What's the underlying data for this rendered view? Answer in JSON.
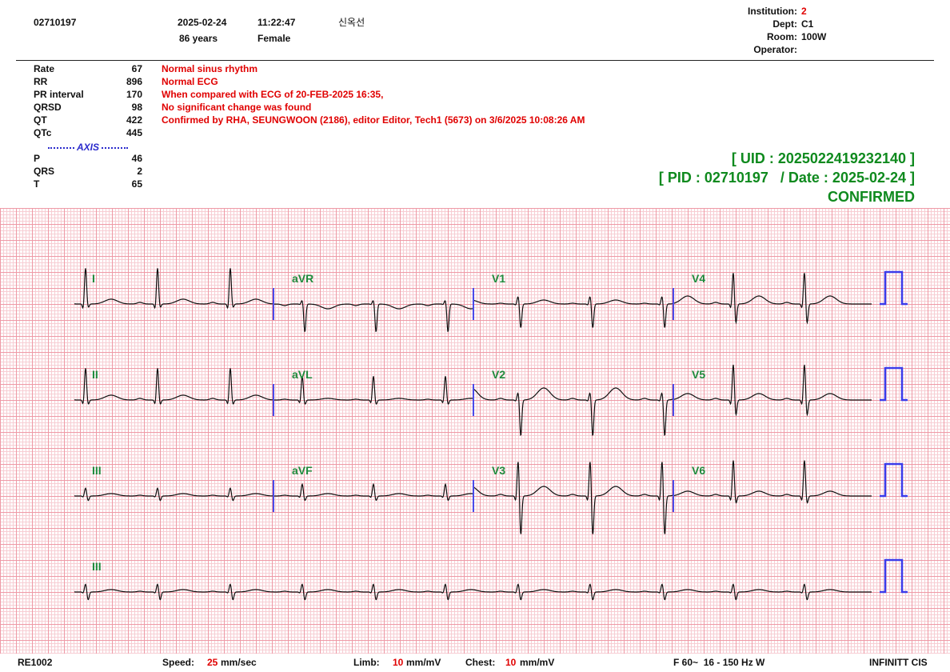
{
  "header": {
    "patient_id": "02710197",
    "date": "2025-02-24",
    "time": "11:22:47",
    "name": "신옥선",
    "age": "86 years",
    "sex": "Female",
    "institution": {
      "label": "Institution:",
      "value": "2"
    },
    "dept": {
      "label": "Dept:",
      "value": "C1"
    },
    "room": {
      "label": "Room:",
      "value": "100W"
    },
    "operator": {
      "label": "Operator:"
    }
  },
  "measurements": [
    {
      "label": "Rate",
      "value": 67
    },
    {
      "label": "RR",
      "value": 896
    },
    {
      "label": "PR interval",
      "value": 170
    },
    {
      "label": "QRSD",
      "value": 98
    },
    {
      "label": "QT",
      "value": 422
    },
    {
      "label": "QTc",
      "value": 445
    }
  ],
  "axis_title": "AXIS",
  "axis": [
    {
      "label": "P",
      "value": 46
    },
    {
      "label": "QRS",
      "value": 2
    },
    {
      "label": "T",
      "value": 65
    }
  ],
  "interpretation": [
    "Normal sinus rhythm",
    "Normal ECG",
    "When compared with ECG of 20-FEB-2025 16:35,",
    "No significant change was found",
    "Confirmed by RHA, SEUNGWOON (2186), editor Editor, Tech1 (5673) on 3/6/2025 10:08:26 AM"
  ],
  "status": {
    "uid": "[ UID : 2025022419232140 ]",
    "pid": "[ PID : 02710197   / Date : 2025-02-24 ]",
    "state": "CONFIRMED"
  },
  "leads": [
    "I",
    "aVR",
    "V1",
    "V4",
    "II",
    "aVL",
    "V2",
    "V5",
    "III",
    "aVF",
    "V3",
    "V6",
    "III"
  ],
  "footer": {
    "device": "RE1002",
    "speed_label": "Speed:",
    "speed_value": 25,
    "speed_unit": "mm/sec",
    "limb_label": "Limb:",
    "limb_value": 10,
    "limb_unit": "mm/mV",
    "chest_label": "Chest:",
    "chest_value": 10,
    "chest_unit": "mm/mV",
    "filter": "F 60~  16 - 150 Hz W",
    "vendor": "INFINITT CIS"
  }
}
